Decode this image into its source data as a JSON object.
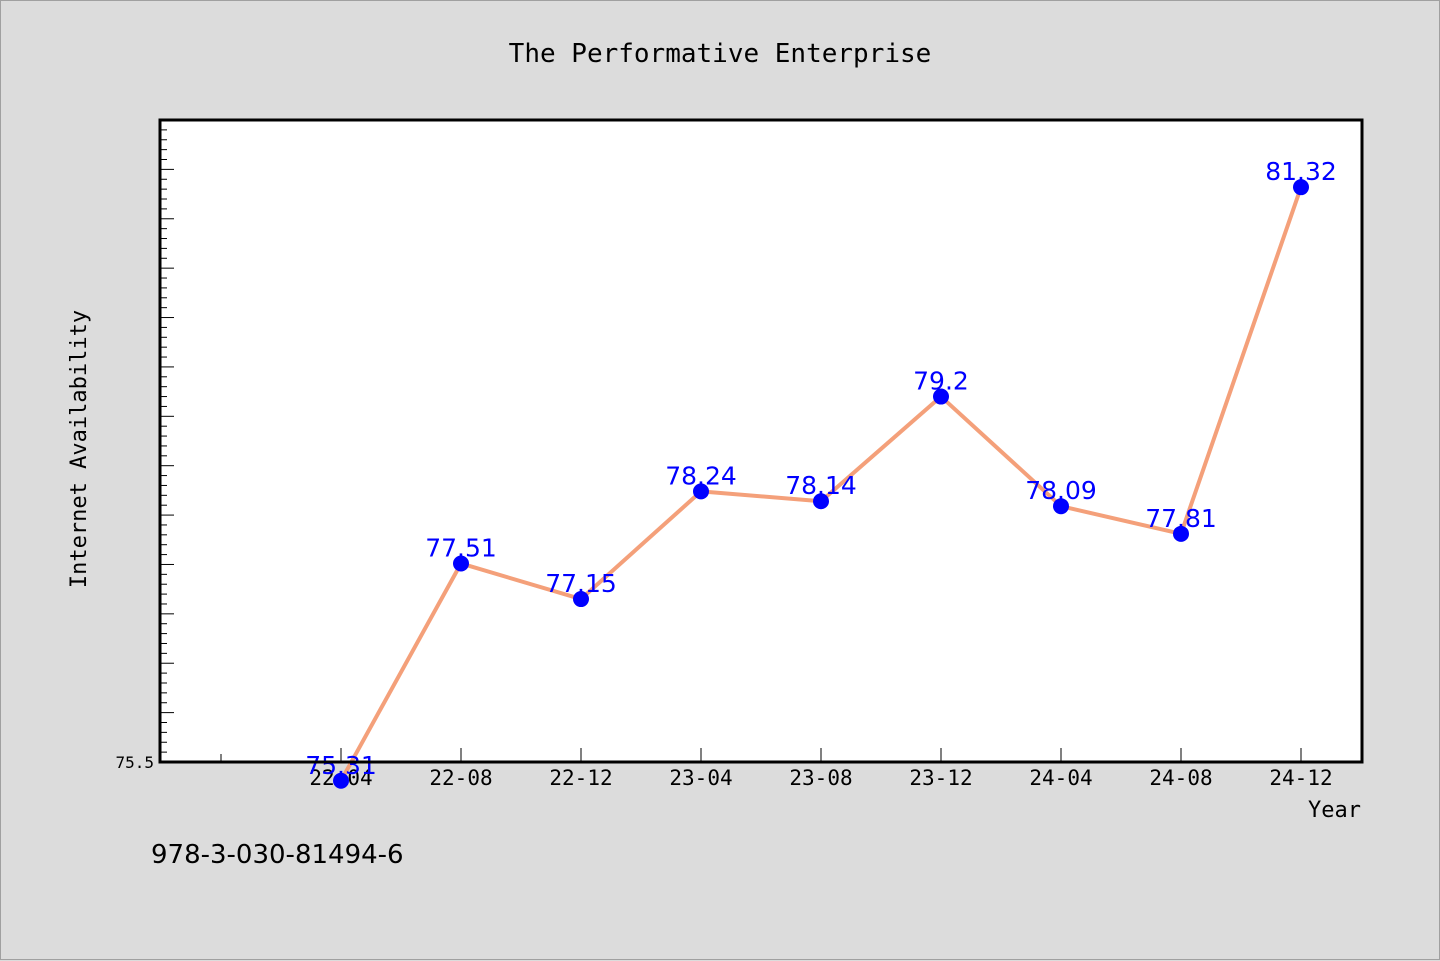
{
  "chart_data": {
    "type": "line",
    "title": "The Performative Enterprise",
    "xlabel": "Year",
    "ylabel": "Internet Availability",
    "categories": [
      "22-04",
      "22-08",
      "22-12",
      "23-04",
      "23-08",
      "23-12",
      "24-04",
      "24-08",
      "24-12"
    ],
    "series": [
      {
        "values": [
          75.31,
          77.51,
          77.15,
          78.24,
          78.14,
          79.2,
          78.09,
          77.81,
          81.32
        ],
        "labels": [
          "75.31",
          "77.51",
          "77.15",
          "78.24",
          "78.14",
          "79.2",
          "78.09",
          "77.81",
          "81.32"
        ]
      }
    ],
    "ylim": [
      75.5,
      82.0
    ],
    "y_tick_labels": [
      "75.5"
    ],
    "grid": false,
    "line_color": "#f4a07a",
    "marker_color": "#0000ff",
    "label_color": "#0000ff"
  },
  "footer": {
    "isbn": "978-3-030-81494-6"
  }
}
